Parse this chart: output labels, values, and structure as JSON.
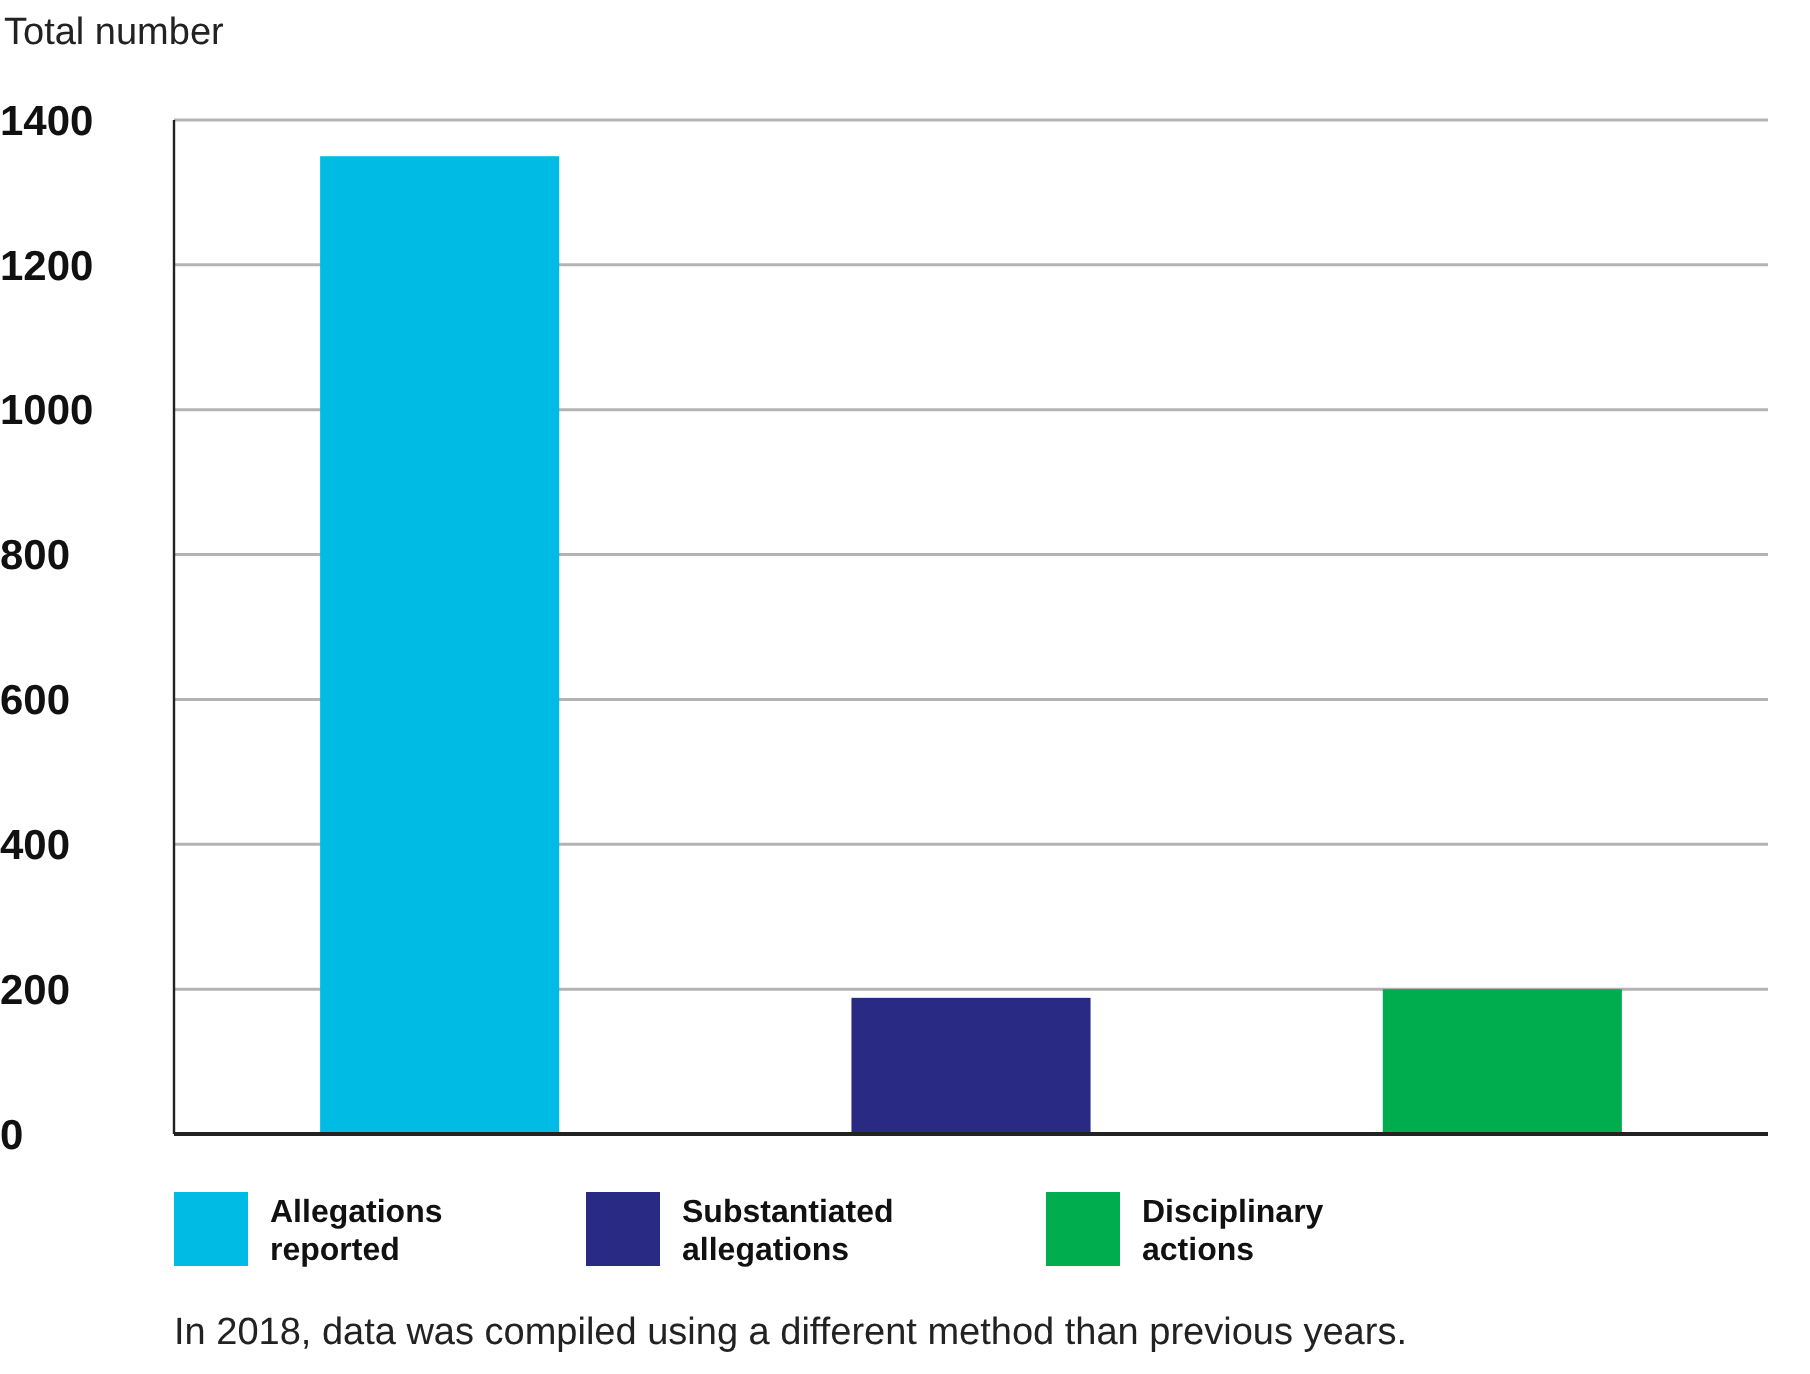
{
  "chart_data": {
    "type": "bar",
    "ylabel": "Total number",
    "categories": [
      null,
      null,
      null
    ],
    "series": [
      {
        "name": "Allegations reported",
        "color": "#00bce4",
        "values": [
          1350,
          null,
          null
        ]
      },
      {
        "name": "Substantiated allegations",
        "color": "#292a84",
        "values": [
          null,
          188,
          null
        ]
      },
      {
        "name": "Disciplinary actions",
        "color": "#00ad4e",
        "values": [
          null,
          null,
          200
        ]
      }
    ],
    "ylim": [
      0,
      1400
    ],
    "yticks": [
      0,
      200,
      400,
      600,
      800,
      1000,
      1200,
      1400
    ],
    "grid": "y",
    "legend": "bottom",
    "annotations": [
      "In 2018, data was compiled using a different method than previous years."
    ]
  }
}
